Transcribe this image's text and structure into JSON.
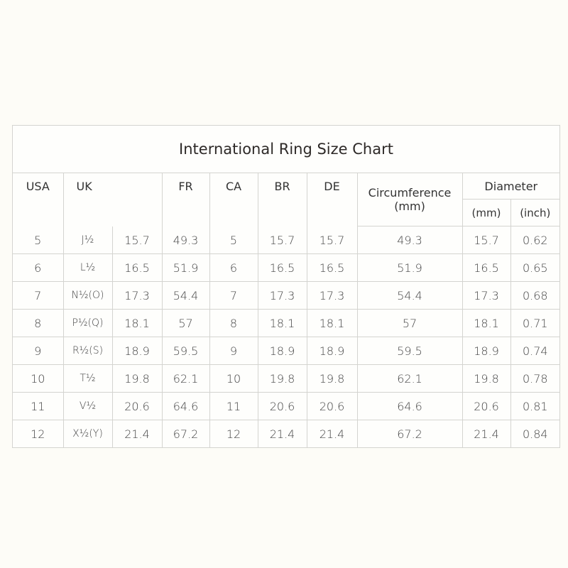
{
  "title": "International Ring Size Chart",
  "headers": {
    "usa": "USA",
    "uk": "UK",
    "fr": "FR",
    "ca": "CA",
    "br": "BR",
    "de": "DE",
    "circumference": "Circumference",
    "circumference_unit": "(mm)",
    "diameter": "Diameter",
    "diameter_mm": "(mm)",
    "diameter_inch": "(inch)"
  },
  "rows": [
    {
      "usa": "5",
      "uk_letter": "J½",
      "uk_num": "15.7",
      "fr": "49.3",
      "ca": "5",
      "br": "15.7",
      "de": "15.7",
      "circ": "49.3",
      "dia_mm": "15.7",
      "dia_in": "0.62"
    },
    {
      "usa": "6",
      "uk_letter": "L½",
      "uk_num": "16.5",
      "fr": "51.9",
      "ca": "6",
      "br": "16.5",
      "de": "16.5",
      "circ": "51.9",
      "dia_mm": "16.5",
      "dia_in": "0.65"
    },
    {
      "usa": "7",
      "uk_letter": "N½(O)",
      "uk_num": "17.3",
      "fr": "54.4",
      "ca": "7",
      "br": "17.3",
      "de": "17.3",
      "circ": "54.4",
      "dia_mm": "17.3",
      "dia_in": "0.68"
    },
    {
      "usa": "8",
      "uk_letter": "P½(Q)",
      "uk_num": "18.1",
      "fr": "57",
      "ca": "8",
      "br": "18.1",
      "de": "18.1",
      "circ": "57",
      "dia_mm": "18.1",
      "dia_in": "0.71"
    },
    {
      "usa": "9",
      "uk_letter": "R½(S)",
      "uk_num": "18.9",
      "fr": "59.5",
      "ca": "9",
      "br": "18.9",
      "de": "18.9",
      "circ": "59.5",
      "dia_mm": "18.9",
      "dia_in": "0.74"
    },
    {
      "usa": "10",
      "uk_letter": "T½",
      "uk_num": "19.8",
      "fr": "62.1",
      "ca": "10",
      "br": "19.8",
      "de": "19.8",
      "circ": "62.1",
      "dia_mm": "19.8",
      "dia_in": "0.78"
    },
    {
      "usa": "11",
      "uk_letter": "V½",
      "uk_num": "20.6",
      "fr": "64.6",
      "ca": "11",
      "br": "20.6",
      "de": "20.6",
      "circ": "64.6",
      "dia_mm": "20.6",
      "dia_in": "0.81"
    },
    {
      "usa": "12",
      "uk_letter": "X½(Y)",
      "uk_num": "21.4",
      "fr": "67.2",
      "ca": "12",
      "br": "21.4",
      "de": "21.4",
      "circ": "67.2",
      "dia_mm": "21.4",
      "dia_in": "0.84"
    }
  ]
}
